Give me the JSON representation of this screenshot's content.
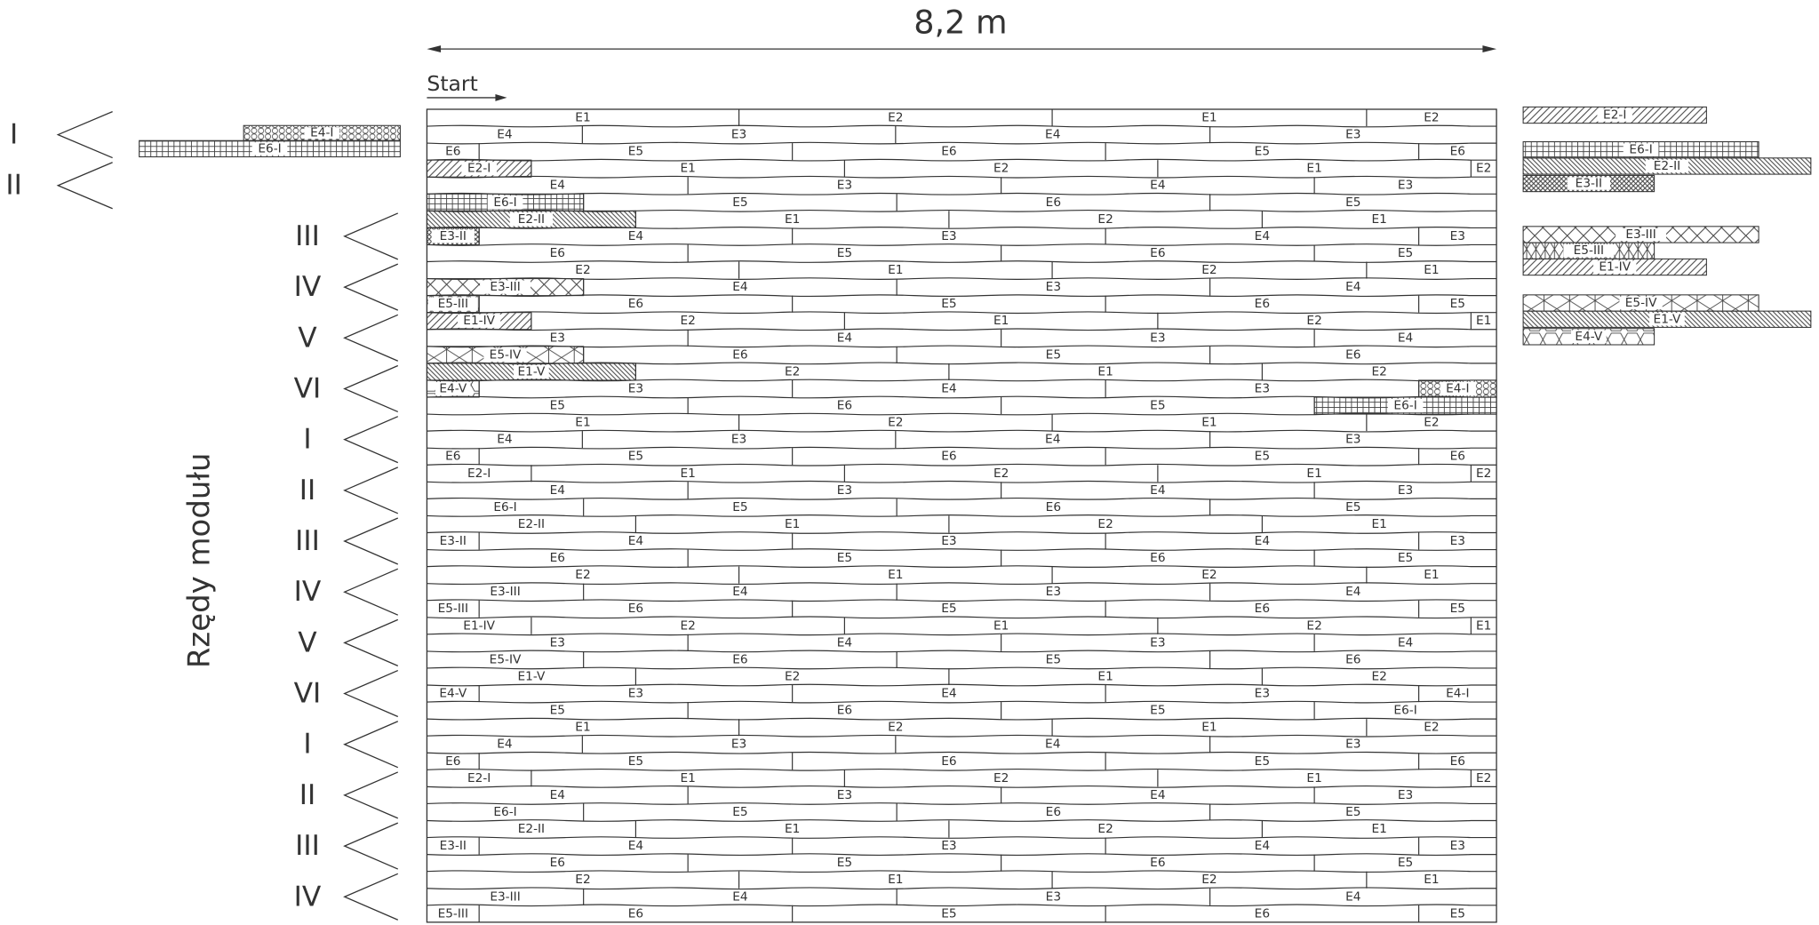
{
  "title": "8,2 m",
  "start": "Start",
  "axis_label": "Rzędy modułu",
  "module_rows": [
    "I",
    "II",
    "III",
    "IV",
    "V",
    "VI",
    "I",
    "II",
    "III",
    "IV",
    "V",
    "VI",
    "I",
    "II",
    "III",
    "IV"
  ],
  "rows": [
    [
      "E1",
      "E2",
      "E1",
      "E2"
    ],
    [
      "E4",
      "E3",
      "E4",
      "E3"
    ],
    [
      "E6",
      "E5",
      "E6",
      "E5",
      "E6"
    ],
    [
      {
        "label": "E2-I",
        "pattern": "diag"
      },
      "E1",
      "E2",
      "E1",
      "E2"
    ],
    [
      "E4",
      "E3",
      "E4",
      "E3"
    ],
    [
      {
        "label": "E6-I",
        "pattern": "grid"
      },
      "E5",
      "E6",
      "E5"
    ],
    [
      {
        "label": "E2-II",
        "pattern": "back"
      },
      "E1",
      "E2",
      "E1"
    ],
    [
      {
        "label": "E3-II",
        "pattern": "cross"
      },
      "E4",
      "E3",
      "E4",
      "E3"
    ],
    [
      "E6",
      "E5",
      "E6",
      "E5"
    ],
    [
      "E2",
      "E1",
      "E2",
      "E1"
    ],
    [
      {
        "label": "E3-III",
        "pattern": "bigcross"
      },
      "E4",
      "E3",
      "E4"
    ],
    [
      {
        "label": "E5-III",
        "pattern": "smallcross"
      },
      "E6",
      "E5",
      "E6",
      "E5"
    ],
    [
      {
        "label": "E1-IV",
        "pattern": "diag"
      },
      "E2",
      "E1",
      "E2",
      "E1"
    ],
    [
      "E3",
      "E4",
      "E3",
      "E4"
    ],
    [
      {
        "label": "E5-IV",
        "pattern": "bowtie"
      },
      "E6",
      "E5",
      "E6"
    ],
    [
      {
        "label": "E1-V",
        "pattern": "back"
      },
      "E2",
      "E1",
      "E2"
    ],
    [
      {
        "label": "E4-V",
        "pattern": "hex"
      },
      "E3",
      "E4",
      "E3",
      {
        "label": "E4-I",
        "pattern": "circles"
      }
    ],
    [
      "E5",
      "E6",
      "E5",
      {
        "label": "E6-I",
        "pattern": "grid"
      }
    ],
    [
      "E1",
      "E2",
      "E1",
      "E2"
    ],
    [
      "E4",
      "E3",
      "E4",
      "E3"
    ],
    [
      "E6",
      "E5",
      "E6",
      "E5",
      "E6"
    ],
    [
      "E2-I",
      "E1",
      "E2",
      "E1",
      "E2"
    ],
    [
      "E4",
      "E3",
      "E4",
      "E3"
    ],
    [
      "E6-I",
      "E5",
      "E6",
      "E5"
    ],
    [
      "E2-II",
      "E1",
      "E2",
      "E1"
    ],
    [
      "E3-II",
      "E4",
      "E3",
      "E4",
      "E3"
    ],
    [
      "E6",
      "E5",
      "E6",
      "E5"
    ],
    [
      "E2",
      "E1",
      "E2",
      "E1"
    ],
    [
      "E3-III",
      "E4",
      "E3",
      "E4"
    ],
    [
      "E5-III",
      "E6",
      "E5",
      "E6",
      "E5"
    ],
    [
      "E1-IV",
      "E2",
      "E1",
      "E2",
      "E1"
    ],
    [
      "E3",
      "E4",
      "E3",
      "E4"
    ],
    [
      "E5-IV",
      "E6",
      "E5",
      "E6"
    ],
    [
      "E1-V",
      "E2",
      "E1",
      "E2"
    ],
    [
      "E4-V",
      "E3",
      "E4",
      "E3",
      "E4-I"
    ],
    [
      "E5",
      "E6",
      "E5",
      "E6-I"
    ],
    [
      "E1",
      "E2",
      "E1",
      "E2"
    ],
    [
      "E4",
      "E3",
      "E4",
      "E3"
    ],
    [
      "E6",
      "E5",
      "E6",
      "E5",
      "E6"
    ],
    [
      "E2-I",
      "E1",
      "E2",
      "E1",
      "E2"
    ],
    [
      "E4",
      "E3",
      "E4",
      "E3"
    ],
    [
      "E6-I",
      "E5",
      "E6",
      "E5"
    ],
    [
      "E2-II",
      "E1",
      "E2",
      "E1"
    ],
    [
      "E3-II",
      "E4",
      "E3",
      "E4",
      "E3"
    ],
    [
      "E6",
      "E5",
      "E6",
      "E5"
    ],
    [
      "E2",
      "E1",
      "E2",
      "E1"
    ],
    [
      "E3-III",
      "E4",
      "E3",
      "E4"
    ],
    [
      "E5-III",
      "E6",
      "E5",
      "E6",
      "E5"
    ]
  ],
  "left_boards": [
    {
      "label": "E4-I",
      "pattern": "circles"
    },
    {
      "label": "E6-I",
      "pattern": "grid"
    }
  ],
  "right_boards": [
    {
      "label": "E2-I",
      "pattern": "diag"
    },
    {
      "label": "E6-I",
      "pattern": "grid"
    },
    {
      "label": "E2-II",
      "pattern": "back"
    },
    {
      "label": "E3-II",
      "pattern": "cross"
    },
    {
      "label": "E3-III",
      "pattern": "bigcross"
    },
    {
      "label": "E5-III",
      "pattern": "smallcross"
    },
    {
      "label": "E1-IV",
      "pattern": "diag"
    },
    {
      "label": "E5-IV",
      "pattern": "bowtie"
    },
    {
      "label": "E1-V",
      "pattern": "back"
    },
    {
      "label": "E4-V",
      "pattern": "hex"
    }
  ]
}
